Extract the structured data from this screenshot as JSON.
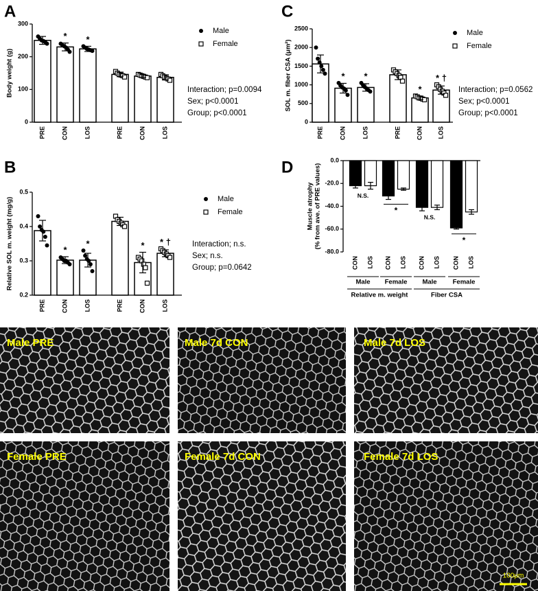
{
  "chart_data": [
    {
      "type": "bar",
      "panel": "A",
      "y_label": "Body weight (g)",
      "categories": [
        "PRE",
        "CON",
        "LOS",
        "PRE",
        "CON",
        "LOS"
      ],
      "ylim": [
        0,
        300
      ],
      "yticks": [
        0,
        100,
        200,
        300
      ],
      "series": [
        {
          "name": "Male",
          "color": "#000000",
          "marker": "circle",
          "values": [
            250,
            230,
            224,
            null,
            null,
            null
          ],
          "errors": [
            12,
            12,
            8,
            null,
            null,
            null
          ],
          "points": [
            [
              262,
              255,
              250,
              248,
              245,
              240
            ],
            [
              240,
              235,
              232,
              228,
              222,
              215
            ],
            [
              232,
              228,
              224,
              222,
              220,
              218
            ],
            null,
            null,
            null
          ],
          "significance": [
            null,
            "*",
            "*",
            null,
            null,
            null
          ]
        },
        {
          "name": "Female",
          "color": "#000000",
          "marker": "square",
          "values": [
            null,
            null,
            null,
            146,
            141,
            137
          ],
          "errors": [
            null,
            null,
            null,
            7,
            5,
            8
          ],
          "points": [
            null,
            null,
            null,
            [
              155,
              150,
              146,
              144,
              142,
              138
            ],
            [
              146,
              144,
              142,
              140,
              138,
              136
            ],
            [
              146,
              142,
              138,
              135,
              132,
              128
            ]
          ],
          "significance": [
            null,
            null,
            null,
            null,
            null,
            null
          ]
        }
      ],
      "stats": [
        "Interaction; p=0.0094",
        "Sex; p<0.0001",
        "Group; p<0.0001"
      ]
    },
    {
      "type": "bar",
      "panel": "B",
      "y_label": "Relative SOL m. weight (mg/g)",
      "categories": [
        "PRE",
        "CON",
        "LOS",
        "PRE",
        "CON",
        "LOS"
      ],
      "ylim": [
        0.2,
        0.5
      ],
      "yticks": [
        0.2,
        0.3,
        0.4,
        0.5
      ],
      "series": [
        {
          "name": "Male",
          "color": "#000000",
          "marker": "circle",
          "values": [
            0.388,
            0.302,
            0.302,
            null,
            null,
            null
          ],
          "errors": [
            0.03,
            0.01,
            0.02,
            null,
            null,
            null
          ],
          "points": [
            [
              0.43,
              0.4,
              0.39,
              0.385,
              0.37,
              0.345
            ],
            [
              0.31,
              0.305,
              0.3,
              0.3,
              0.295,
              0.29
            ],
            [
              0.33,
              0.315,
              0.305,
              0.3,
              0.29,
              0.27
            ],
            null,
            null,
            null
          ],
          "significance": [
            null,
            "*",
            "*",
            null,
            null,
            null
          ]
        },
        {
          "name": "Female",
          "color": "#000000",
          "marker": "square",
          "values": [
            null,
            null,
            null,
            0.415,
            0.295,
            0.322
          ],
          "errors": [
            null,
            null,
            null,
            0.012,
            0.03,
            0.01
          ],
          "points": [
            null,
            null,
            null,
            [
              0.43,
              0.42,
              0.415,
              0.41,
              0.405,
              0.4
            ],
            [
              0.31,
              0.305,
              0.3,
              0.29,
              0.28,
              0.235
            ],
            [
              0.335,
              0.33,
              0.325,
              0.32,
              0.315,
              0.31
            ]
          ],
          "significance": [
            null,
            null,
            null,
            null,
            "*",
            "* †"
          ]
        }
      ],
      "stats": [
        "Interaction; n.s.",
        "Sex; n.s.",
        "Group; p=0.0642"
      ]
    },
    {
      "type": "bar",
      "panel": "C",
      "y_label": "SOL m. fiber CSA (μm²)",
      "categories": [
        "PRE",
        "CON",
        "LOS",
        "PRE",
        "CON",
        "LOS"
      ],
      "ylim": [
        0,
        2500
      ],
      "yticks": [
        0,
        500,
        1000,
        1500,
        2000,
        2500
      ],
      "series": [
        {
          "name": "Male",
          "color": "#000000",
          "marker": "circle",
          "values": [
            1560,
            910,
            930,
            null,
            null,
            null
          ],
          "errors": [
            240,
            130,
            100,
            null,
            null,
            null
          ],
          "points": [
            [
              2000,
              1700,
              1600,
              1500,
              1400,
              1300
            ],
            [
              1050,
              980,
              930,
              900,
              850,
              730
            ],
            [
              1050,
              990,
              940,
              900,
              860,
              820
            ],
            null,
            null,
            null
          ],
          "significance": [
            null,
            "*",
            "*",
            null,
            null,
            null
          ]
        },
        {
          "name": "Female",
          "color": "#000000",
          "marker": "square",
          "values": [
            null,
            null,
            null,
            1270,
            650,
            860
          ],
          "errors": [
            null,
            null,
            null,
            130,
            50,
            110
          ],
          "points": [
            null,
            null,
            null,
            [
              1400,
              1350,
              1300,
              1250,
              1200,
              1100
            ],
            [
              700,
              680,
              650,
              640,
              620,
              600
            ],
            [
              1000,
              950,
              880,
              830,
              780,
              720
            ]
          ],
          "significance": [
            null,
            null,
            null,
            null,
            "*",
            "* †"
          ]
        }
      ],
      "stats": [
        "Interaction; p=0.0562",
        "Sex; p<0.0001",
        "Group; p<0.0001"
      ]
    },
    {
      "type": "bar",
      "panel": "D",
      "y_label": [
        "Muscle atrophy",
        "(% from ave. of PRE values)"
      ],
      "categories": [
        "CON",
        "LOS",
        "CON",
        "LOS",
        "CON",
        "LOS",
        "CON",
        "LOS"
      ],
      "ylim": [
        -80,
        0
      ],
      "yticks": [
        {
          "value": 0,
          "label": "0.0"
        },
        {
          "value": -20,
          "label": "-20.0"
        },
        {
          "value": -40,
          "label": "-40.0"
        },
        {
          "value": -60,
          "label": "-60.0"
        },
        {
          "value": -80,
          "label": "-80.0"
        }
      ],
      "values": [
        -22,
        -22,
        -31,
        -25,
        -41,
        -41,
        -59,
        -45
      ],
      "errors": [
        2,
        3,
        3,
        1,
        3,
        2,
        1,
        2
      ],
      "bar_colors": [
        "#000000",
        "#ffffff",
        "#000000",
        "#ffffff",
        "#000000",
        "#ffffff",
        "#000000",
        "#ffffff"
      ],
      "groups": [
        "Male",
        "Female",
        "Male",
        "Female"
      ],
      "supergroups": [
        "Relative m. weight",
        "Fiber CSA"
      ],
      "comparisons": [
        "N.S.",
        "*",
        "N.S.",
        "*"
      ]
    }
  ],
  "images": [
    "Male PRE",
    "Male 7d CON",
    "Male 7d LOS",
    "Female PRE",
    "Female 7d CON",
    "Female 7d LOS"
  ],
  "scale_bar": "100μm"
}
